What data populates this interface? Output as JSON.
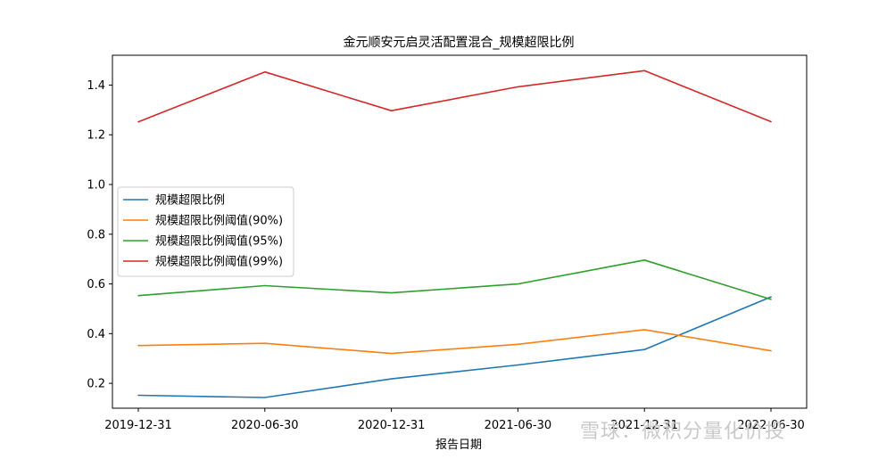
{
  "chart_data": {
    "type": "line",
    "title": "金元顺安元启灵活配置混合_规模超限比例",
    "xlabel": "报告日期",
    "ylabel": "",
    "categories": [
      "2019-12-31",
      "2020-06-30",
      "2020-12-31",
      "2021-06-30",
      "2021-12-31",
      "2022-06-30"
    ],
    "ylim": [
      0.1,
      1.52
    ],
    "yticks": [
      0.2,
      0.4,
      0.6,
      0.8,
      1.0,
      1.2,
      1.4
    ],
    "ytick_labels": [
      "0.2",
      "0.4",
      "0.6",
      "0.8",
      "1.0",
      "1.2",
      "1.4"
    ],
    "grid": false,
    "legend_position": "center-left",
    "series": [
      {
        "name": "规模超限比例",
        "color": "#1f77b4",
        "values": [
          0.152,
          0.143,
          0.218,
          0.274,
          0.336,
          0.548
        ]
      },
      {
        "name": "规模超限比例阈值(90%)",
        "color": "#ff7f0e",
        "values": [
          0.352,
          0.361,
          0.32,
          0.357,
          0.416,
          0.331
        ]
      },
      {
        "name": "规模超限比例阈值(95%)",
        "color": "#2ca02c",
        "values": [
          0.553,
          0.593,
          0.564,
          0.6,
          0.696,
          0.538
        ]
      },
      {
        "name": "规模超限比例阈值(99%)",
        "color": "#d62728",
        "values": [
          1.252,
          1.453,
          1.297,
          1.393,
          1.458,
          1.253
        ]
      }
    ]
  },
  "watermark": "雪球：微积分量化价投"
}
